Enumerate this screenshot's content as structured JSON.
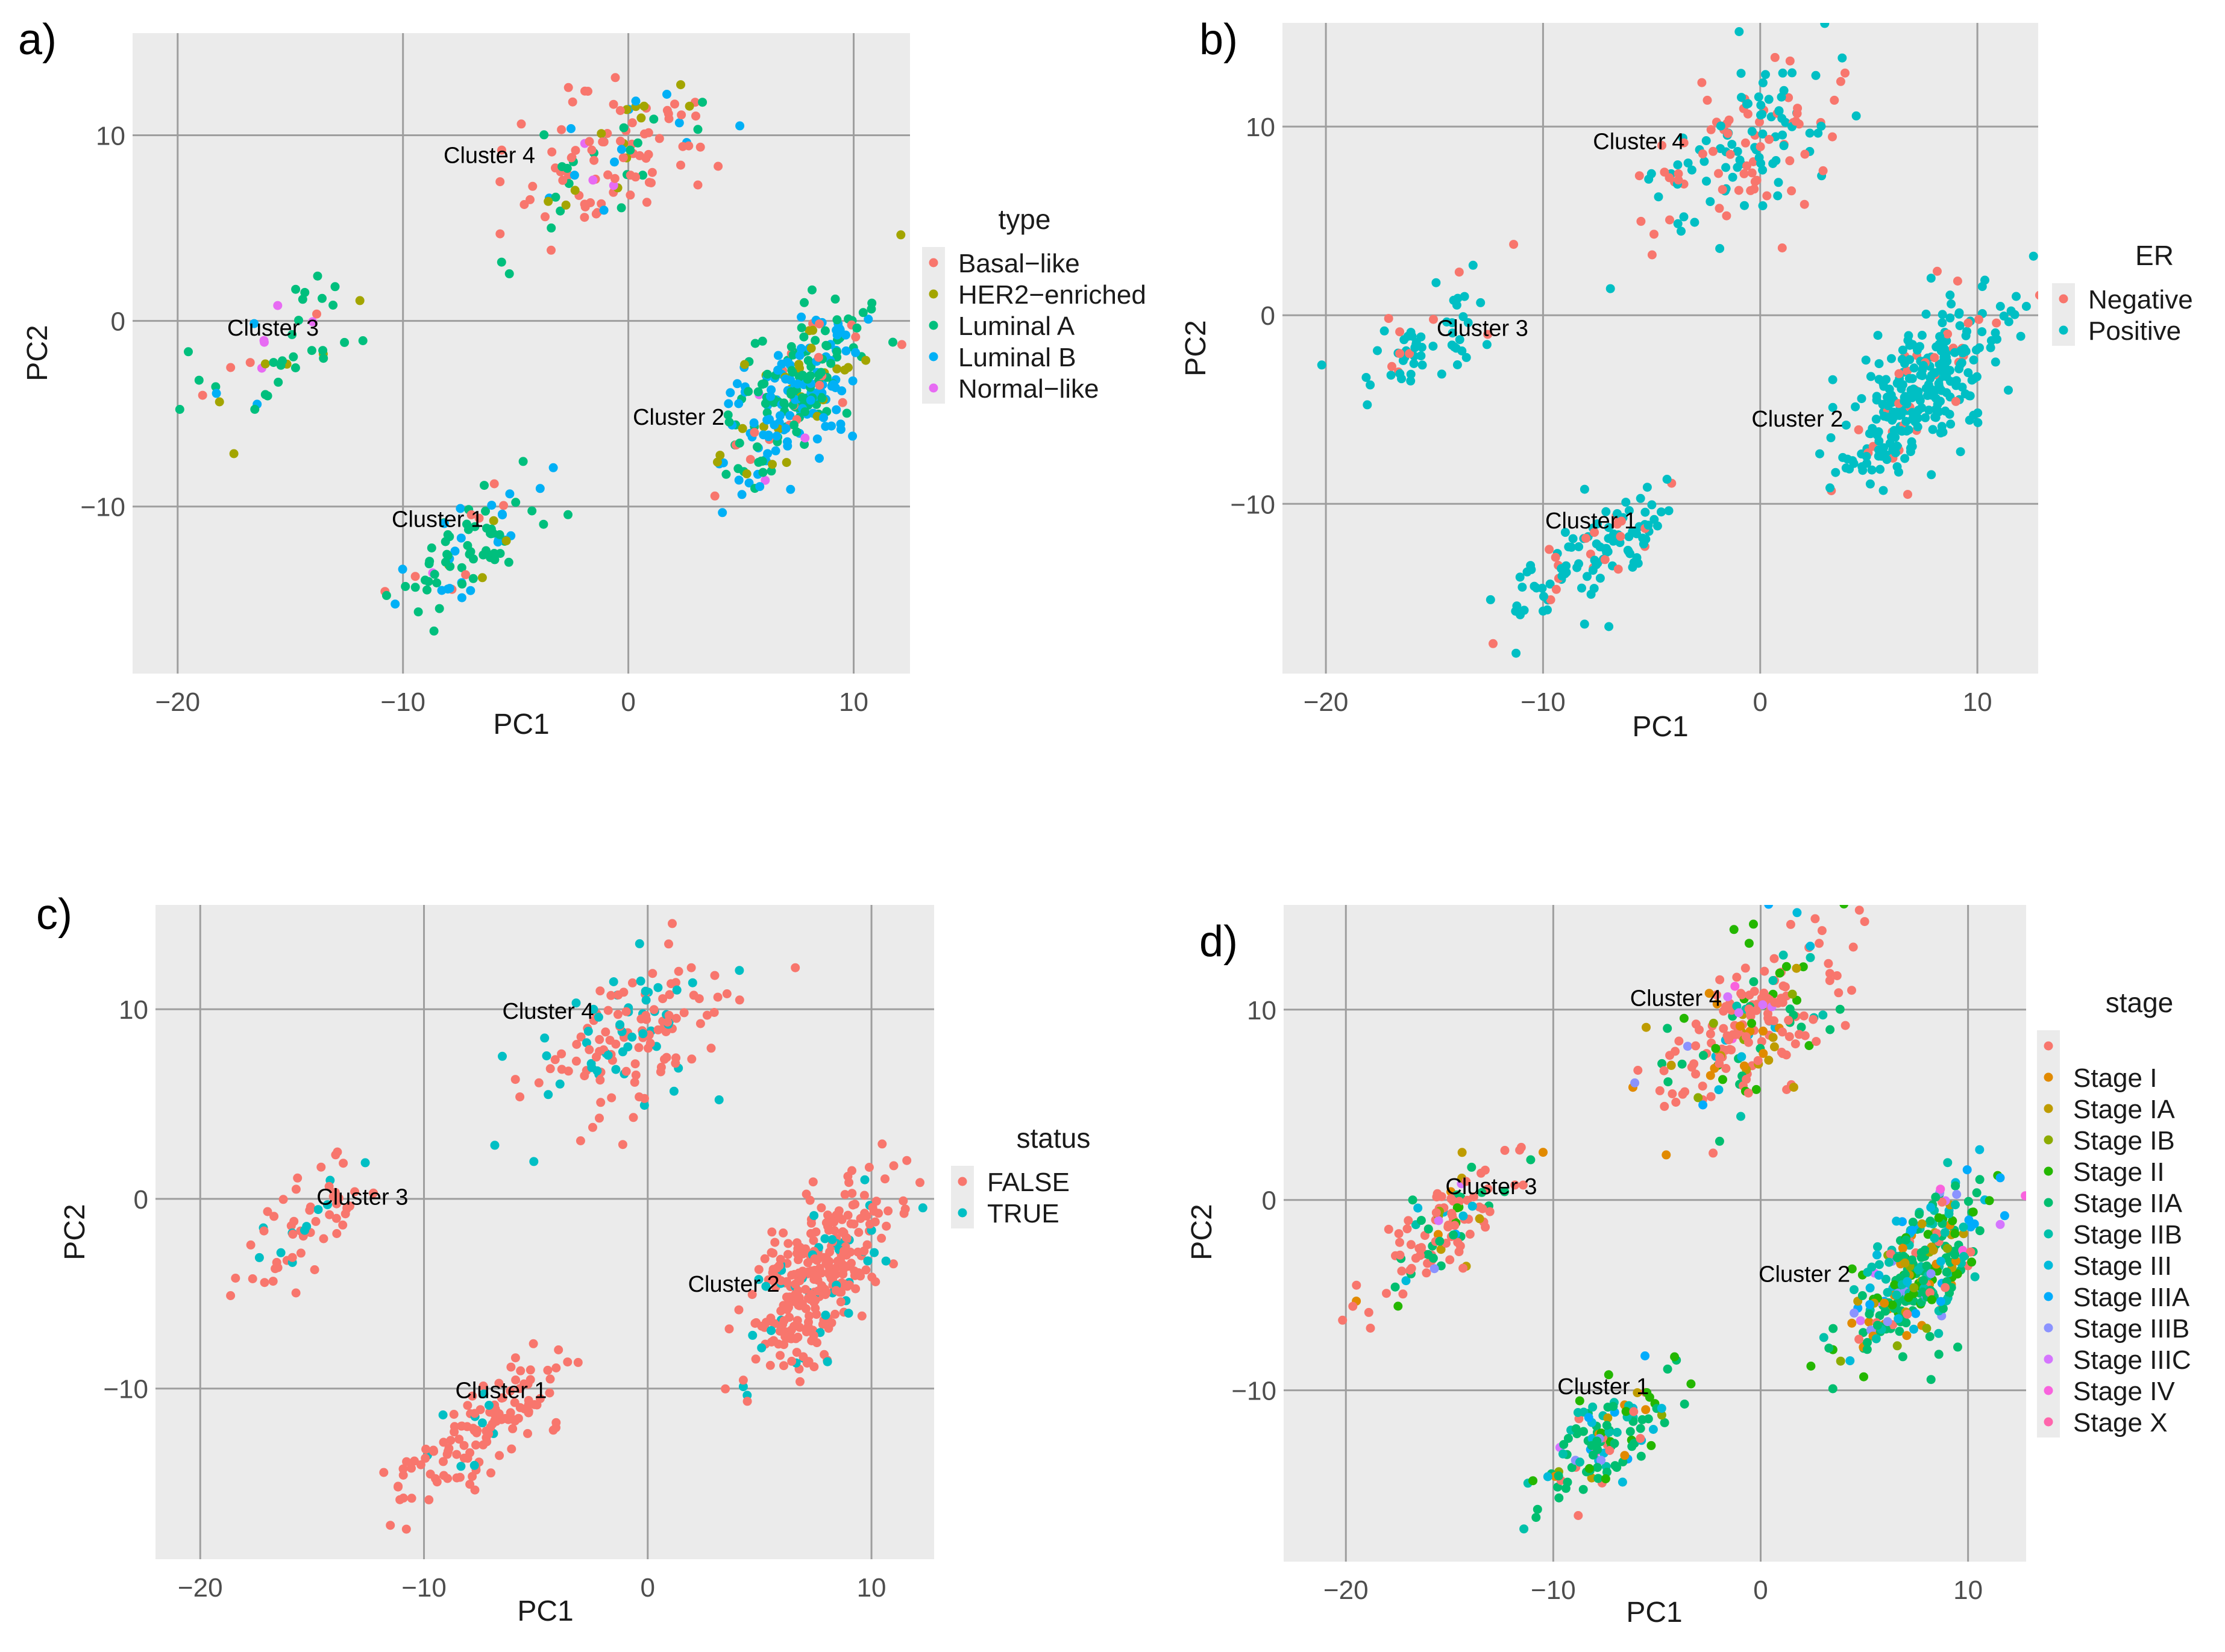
{
  "figure": {
    "caption": "",
    "colors": {
      "panel_bg": "#EBEBEB",
      "grid": "#9E9E9E",
      "tick_text": "#4D4D4D",
      "axis_title": "#1A1A1A"
    }
  },
  "chart_data": [
    {
      "type": "scatter",
      "panel_label": "a)",
      "title": "",
      "xlabel": "PC1",
      "ylabel": "PC2",
      "xlim": [
        -22,
        12.5
      ],
      "ylim": [
        -19,
        15.5
      ],
      "xticks": [
        -20,
        -10,
        0,
        10
      ],
      "xtick_labels": [
        "−20",
        "−10",
        "0",
        "10"
      ],
      "yticks": [
        -10,
        0,
        10
      ],
      "ytick_labels": [
        "−10",
        "0",
        "10"
      ],
      "grid": true,
      "legend_position": "right",
      "legend": {
        "title": "type",
        "entries": [
          {
            "label": "Basal−like",
            "color": "#F8766D"
          },
          {
            "label": "HER2−enriched",
            "color": "#A3A500"
          },
          {
            "label": "Luminal A",
            "color": "#00BF7D"
          },
          {
            "label": "Luminal B",
            "color": "#00B0F6"
          },
          {
            "label": "Normal−like",
            "color": "#E76BF3"
          }
        ]
      },
      "annotations": [
        {
          "text": "Cluster 4",
          "x": -8.2,
          "y": 8.5
        },
        {
          "text": "Cluster 3",
          "x": -17.8,
          "y": -0.8
        },
        {
          "text": "Cluster 2",
          "x": 0.2,
          "y": -5.6
        },
        {
          "text": "Cluster 1",
          "x": -10.5,
          "y": -11.1
        }
      ],
      "clusters": [
        {
          "name": "Cluster 1",
          "center": [
            -7.5,
            -12.5
          ],
          "spread": [
            1.8,
            1.8
          ],
          "corr": 0.72,
          "n": 90,
          "mix": [
            0.08,
            0.06,
            0.64,
            0.2,
            0.02
          ]
        },
        {
          "name": "Cluster 2",
          "center": [
            7.5,
            -4
          ],
          "spread": [
            1.7,
            2.4
          ],
          "corr": 0.65,
          "n": 280,
          "mix": [
            0.07,
            0.12,
            0.41,
            0.38,
            0.02
          ]
        },
        {
          "name": "Cluster 3",
          "center": [
            -15.5,
            -1.5
          ],
          "spread": [
            1.7,
            1.9
          ],
          "corr": 0.7,
          "n": 45,
          "mix": [
            0.13,
            0.05,
            0.7,
            0.04,
            0.08
          ]
        },
        {
          "name": "Cluster 4",
          "center": [
            -0.5,
            9
          ],
          "spread": [
            2.2,
            2.3
          ],
          "corr": 0.55,
          "n": 125,
          "mix": [
            0.52,
            0.18,
            0.15,
            0.13,
            0.02
          ]
        }
      ]
    },
    {
      "type": "scatter",
      "panel_label": "b)",
      "title": "",
      "xlabel": "PC1",
      "ylabel": "PC2",
      "xlim": [
        -22,
        12.8
      ],
      "ylim": [
        -19,
        15.5
      ],
      "xticks": [
        -20,
        -10,
        0,
        10
      ],
      "xtick_labels": [
        "−20",
        "−10",
        "0",
        "10"
      ],
      "yticks": [
        -10,
        0,
        10
      ],
      "ytick_labels": [
        "−10",
        "0",
        "10"
      ],
      "grid": true,
      "legend_position": "right",
      "legend": {
        "title": "ER",
        "entries": [
          {
            "label": "Negative",
            "color": "#F8766D"
          },
          {
            "label": "Positive",
            "color": "#00BFC4"
          }
        ]
      },
      "annotations": [
        {
          "text": "Cluster 4",
          "x": -7.7,
          "y": 8.8
        },
        {
          "text": "Cluster 3",
          "x": -14.9,
          "y": -1.1
        },
        {
          "text": "Cluster 2",
          "x": -0.4,
          "y": -5.9
        },
        {
          "text": "Cluster 1",
          "x": -9.9,
          "y": -11.3
        }
      ],
      "clusters": [
        {
          "name": "Cluster 1",
          "center": [
            -7.5,
            -12.5
          ],
          "spread": [
            1.8,
            1.8
          ],
          "corr": 0.72,
          "n": 120,
          "mix": [
            0.15,
            0.85
          ]
        },
        {
          "name": "Cluster 2",
          "center": [
            7.5,
            -4
          ],
          "spread": [
            1.7,
            2.4
          ],
          "corr": 0.65,
          "n": 300,
          "mix": [
            0.13,
            0.87
          ]
        },
        {
          "name": "Cluster 3",
          "center": [
            -15.5,
            -1.5
          ],
          "spread": [
            1.7,
            1.9
          ],
          "corr": 0.7,
          "n": 60,
          "mix": [
            0.2,
            0.8
          ]
        },
        {
          "name": "Cluster 4",
          "center": [
            -0.5,
            9
          ],
          "spread": [
            2.2,
            2.3
          ],
          "corr": 0.55,
          "n": 150,
          "mix": [
            0.42,
            0.58
          ]
        }
      ]
    },
    {
      "type": "scatter",
      "panel_label": "c)",
      "title": "",
      "xlabel": "PC1",
      "ylabel": "PC2",
      "xlim": [
        -22,
        12.8
      ],
      "ylim": [
        -19,
        15.5
      ],
      "xticks": [
        -20,
        -10,
        0,
        10
      ],
      "xtick_labels": [
        "−20",
        "−10",
        "0",
        "10"
      ],
      "yticks": [
        -10,
        0,
        10
      ],
      "ytick_labels": [
        "−10",
        "0",
        "10"
      ],
      "grid": true,
      "legend_position": "right",
      "legend": {
        "title": "status",
        "entries": [
          {
            "label": "FALSE",
            "color": "#F8766D"
          },
          {
            "label": "TRUE",
            "color": "#00BFC4"
          }
        ]
      },
      "annotations": [
        {
          "text": "Cluster 4",
          "x": -6.5,
          "y": 9.5
        },
        {
          "text": "Cluster 3",
          "x": -14.8,
          "y": -0.3
        },
        {
          "text": "Cluster 2",
          "x": 1.8,
          "y": -4.9
        },
        {
          "text": "Cluster 1",
          "x": -8.6,
          "y": -10.5
        }
      ],
      "clusters": [
        {
          "name": "Cluster 1",
          "center": [
            -7.5,
            -12.5
          ],
          "spread": [
            1.8,
            1.8
          ],
          "corr": 0.72,
          "n": 130,
          "mix": [
            0.92,
            0.08
          ]
        },
        {
          "name": "Cluster 2",
          "center": [
            7.5,
            -4
          ],
          "spread": [
            1.7,
            2.4
          ],
          "corr": 0.65,
          "n": 320,
          "mix": [
            0.88,
            0.12
          ]
        },
        {
          "name": "Cluster 3",
          "center": [
            -15.5,
            -1.5
          ],
          "spread": [
            1.7,
            1.9
          ],
          "corr": 0.7,
          "n": 60,
          "mix": [
            0.85,
            0.15
          ]
        },
        {
          "name": "Cluster 4",
          "center": [
            -0.5,
            9
          ],
          "spread": [
            2.2,
            2.3
          ],
          "corr": 0.55,
          "n": 150,
          "mix": [
            0.78,
            0.22
          ]
        }
      ]
    },
    {
      "type": "scatter",
      "panel_label": "d)",
      "title": "",
      "xlabel": "PC1",
      "ylabel": "PC2",
      "xlim": [
        -23,
        12.8
      ],
      "ylim": [
        -19,
        15.5
      ],
      "xticks": [
        -20,
        -10,
        0,
        10
      ],
      "xtick_labels": [
        "−20",
        "−10",
        "0",
        "10"
      ],
      "yticks": [
        -10,
        0,
        10
      ],
      "ytick_labels": [
        "−10",
        "0",
        "10"
      ],
      "grid": true,
      "legend_position": "right",
      "legend": {
        "title": "stage",
        "entries": [
          {
            "label": "",
            "color": "#F8766D"
          },
          {
            "label": "Stage I",
            "color": "#E18A00"
          },
          {
            "label": "Stage IA",
            "color": "#BE9C00"
          },
          {
            "label": "Stage IB",
            "color": "#8CAB00"
          },
          {
            "label": "Stage II",
            "color": "#24B700"
          },
          {
            "label": "Stage IIA",
            "color": "#00BE70"
          },
          {
            "label": "Stage IIB",
            "color": "#00C1AB"
          },
          {
            "label": "Stage III",
            "color": "#00BBDA"
          },
          {
            "label": "Stage IIIA",
            "color": "#00ACFC"
          },
          {
            "label": "Stage IIIB",
            "color": "#8B93FF"
          },
          {
            "label": "Stage IIIC",
            "color": "#D575FE"
          },
          {
            "label": "Stage IV",
            "color": "#F962DD"
          },
          {
            "label": "Stage X",
            "color": "#FF65AC"
          }
        ]
      },
      "annotations": [
        {
          "text": "Cluster 4",
          "x": -6.3,
          "y": 10.2
        },
        {
          "text": "Cluster 3",
          "x": -15.2,
          "y": 0.3
        },
        {
          "text": "Cluster 2",
          "x": -0.1,
          "y": -4.3
        },
        {
          "text": "Cluster 1",
          "x": -9.8,
          "y": -10.2
        }
      ],
      "clusters": [
        {
          "name": "Cluster 1",
          "center": [
            -7.5,
            -12.5
          ],
          "spread": [
            1.8,
            1.8
          ],
          "corr": 0.72,
          "n": 130,
          "mix": [
            0.08,
            0.06,
            0.05,
            0.03,
            0.12,
            0.34,
            0.14,
            0.06,
            0.06,
            0.02,
            0.03,
            0.01,
            0
          ]
        },
        {
          "name": "Cluster 2",
          "center": [
            7.5,
            -4
          ],
          "spread": [
            1.7,
            2.4
          ],
          "corr": 0.65,
          "n": 320,
          "mix": [
            0.06,
            0.06,
            0.05,
            0.04,
            0.12,
            0.34,
            0.14,
            0.07,
            0.07,
            0.02,
            0.02,
            0.01,
            0
          ]
        },
        {
          "name": "Cluster 3",
          "center": [
            -15.5,
            -1.5
          ],
          "spread": [
            1.7,
            1.9
          ],
          "corr": 0.7,
          "n": 120,
          "mix": [
            0.6,
            0.04,
            0.04,
            0.02,
            0.05,
            0.13,
            0.05,
            0.02,
            0.02,
            0.01,
            0.01,
            0.01,
            0
          ]
        },
        {
          "name": "Cluster 4",
          "center": [
            -0.5,
            9
          ],
          "spread": [
            2.2,
            2.3
          ],
          "corr": 0.55,
          "n": 220,
          "mix": [
            0.55,
            0.05,
            0.05,
            0.03,
            0.07,
            0.11,
            0.05,
            0.03,
            0.03,
            0.01,
            0.01,
            0.01,
            0
          ]
        }
      ]
    }
  ]
}
